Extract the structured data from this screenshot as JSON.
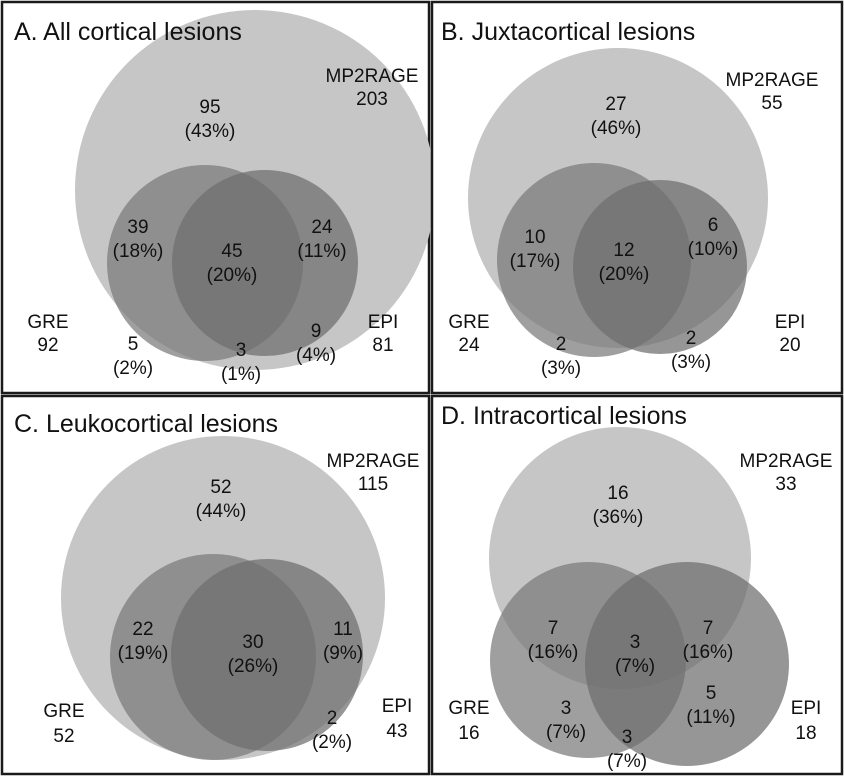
{
  "colors": {
    "mp2rage_circle": "#c6c6c6",
    "gre_circle": "#7a7a7a",
    "epi_circle": "#6e6e6e",
    "panel_border": "#1a1a1a",
    "text": "#111111"
  },
  "panels": [
    {
      "title": "A. All cortical lesions",
      "sets": {
        "mp2rage": {
          "name": "MP2RAGE",
          "count": "203"
        },
        "gre": {
          "name": "GRE",
          "count": "92"
        },
        "epi": {
          "name": "EPI",
          "count": "81"
        }
      },
      "regions": [
        {
          "count": "95",
          "pct": "(43%)"
        },
        {
          "count": "39",
          "pct": "(18%)"
        },
        {
          "count": "45",
          "pct": "(20%)"
        },
        {
          "count": "24",
          "pct": "(11%)"
        },
        {
          "count": "5",
          "pct": "(2%)"
        },
        {
          "count": "3",
          "pct": "(1%)"
        },
        {
          "count": "9",
          "pct": "(4%)"
        }
      ]
    },
    {
      "title": "B. Juxtacortical lesions",
      "sets": {
        "mp2rage": {
          "name": "MP2RAGE",
          "count": "55"
        },
        "gre": {
          "name": "GRE",
          "count": "24"
        },
        "epi": {
          "name": "EPI",
          "count": "20"
        }
      },
      "regions": [
        {
          "count": "27",
          "pct": "(46%)"
        },
        {
          "count": "10",
          "pct": "(17%)"
        },
        {
          "count": "12",
          "pct": "(20%)"
        },
        {
          "count": "6",
          "pct": "(10%)"
        },
        {
          "count": "2",
          "pct": "(3%)"
        },
        {
          "count": "2",
          "pct": "(3%)"
        }
      ]
    },
    {
      "title": "C. Leukocortical lesions",
      "sets": {
        "mp2rage": {
          "name": "MP2RAGE",
          "count": "115"
        },
        "gre": {
          "name": "GRE",
          "count": "52"
        },
        "epi": {
          "name": "EPI",
          "count": "43"
        }
      },
      "regions": [
        {
          "count": "52",
          "pct": "(44%)"
        },
        {
          "count": "22",
          "pct": "(19%)"
        },
        {
          "count": "30",
          "pct": "(26%)"
        },
        {
          "count": "11",
          "pct": "(9%)"
        },
        {
          "count": "2",
          "pct": "(2%)"
        }
      ]
    },
    {
      "title": "D. Intracortical lesions",
      "sets": {
        "mp2rage": {
          "name": "MP2RAGE",
          "count": "33"
        },
        "gre": {
          "name": "GRE",
          "count": "16"
        },
        "epi": {
          "name": "EPI",
          "count": "18"
        }
      },
      "regions": [
        {
          "count": "16",
          "pct": "(36%)"
        },
        {
          "count": "7",
          "pct": "(16%)"
        },
        {
          "count": "3",
          "pct": "(7%)"
        },
        {
          "count": "7",
          "pct": "(16%)"
        },
        {
          "count": "3",
          "pct": "(7%)"
        },
        {
          "count": "3",
          "pct": "(7%)"
        },
        {
          "count": "5",
          "pct": "(11%)"
        }
      ]
    }
  ]
}
